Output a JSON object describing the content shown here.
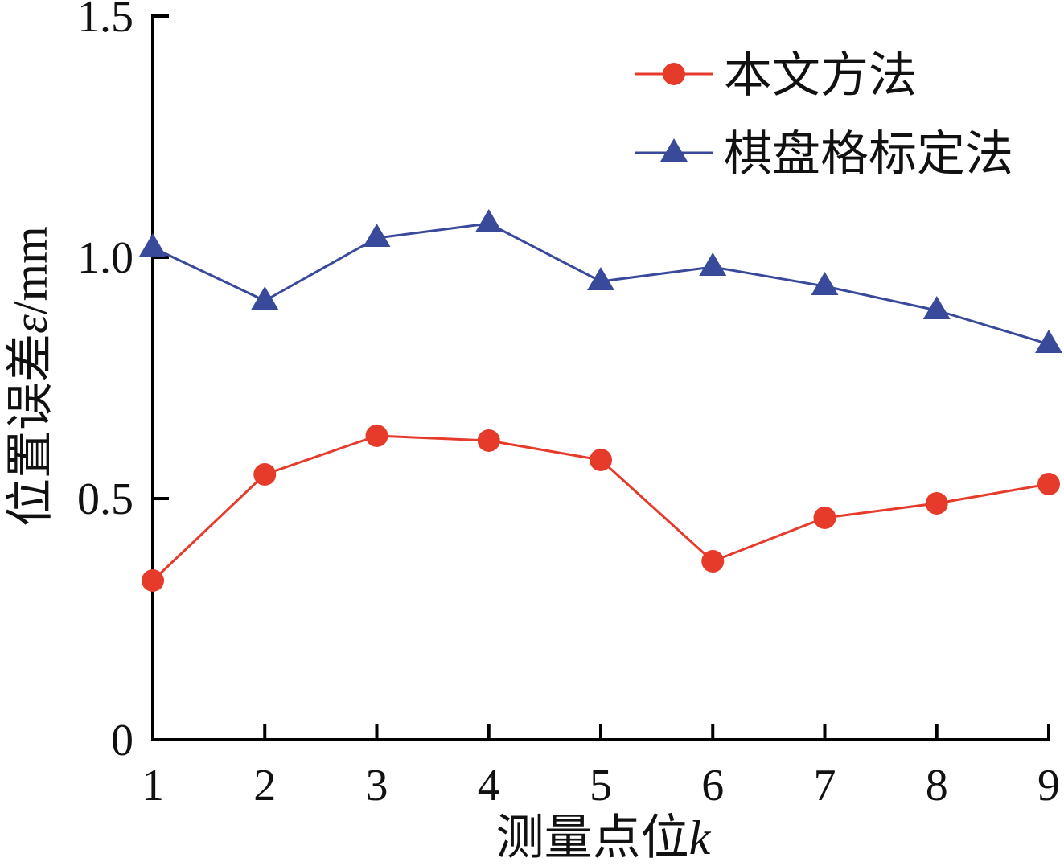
{
  "chart_data": {
    "type": "line",
    "x": [
      1,
      2,
      3,
      4,
      5,
      6,
      7,
      8,
      9
    ],
    "xtick_labels": [
      "1",
      "2",
      "3",
      "4",
      "5",
      "6",
      "7",
      "8",
      "9"
    ],
    "yticks": [
      0,
      0.5,
      1.0,
      1.5
    ],
    "ytick_labels": [
      "0",
      "0.5",
      "1.0",
      "1.5"
    ],
    "series": [
      {
        "name": "本文方法",
        "values": [
          0.33,
          0.55,
          0.63,
          0.62,
          0.58,
          0.37,
          0.46,
          0.49,
          0.53
        ],
        "color": "#E63A2B",
        "marker": "circle"
      },
      {
        "name": "棋盘格标定法",
        "values": [
          1.02,
          0.91,
          1.04,
          1.07,
          0.95,
          0.98,
          0.94,
          0.89,
          0.82
        ],
        "color": "#3A4A9B",
        "marker": "triangle"
      }
    ],
    "xlabel": "测量点位k",
    "ylabel": "位置误差ε/mm",
    "xlim": [
      1,
      9
    ],
    "ylim": [
      0,
      1.5
    ],
    "grid": false,
    "legend_position": "top-right"
  }
}
